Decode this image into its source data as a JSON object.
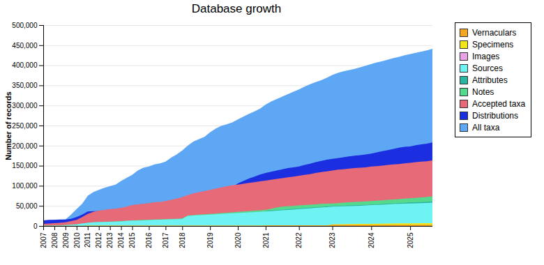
{
  "chart_data": {
    "type": "area",
    "title": "Database growth",
    "y_label": "Number of records",
    "stacked": false,
    "grid": true,
    "legend": "right",
    "ylim": [
      0,
      500000
    ],
    "yticks": [
      0,
      {
        "value": 50000,
        "label": "50,000"
      },
      {
        "value": 100000,
        "label": "100,000"
      },
      {
        "value": 150000,
        "label": "150,000"
      },
      {
        "value": 200000,
        "label": "200,000"
      },
      {
        "value": 250000,
        "label": "250,000"
      },
      {
        "value": 300000,
        "label": "300,000"
      },
      {
        "value": 350000,
        "label": "350,000"
      },
      {
        "value": 400000,
        "label": "400,000"
      },
      {
        "value": 450000,
        "label": "450,000"
      },
      {
        "value": 500000,
        "label": "500,000"
      }
    ],
    "categories": [
      "2007",
      null,
      "2008",
      null,
      "2009",
      null,
      "2010",
      null,
      "2011",
      null,
      "2012",
      null,
      "2013",
      null,
      "2014",
      null,
      "2015",
      null,
      null,
      "2016",
      null,
      null,
      "2017",
      null,
      null,
      "2018",
      null,
      null,
      null,
      null,
      "2019",
      null,
      null,
      null,
      null,
      "2020",
      null,
      null,
      null,
      null,
      "2021",
      null,
      null,
      null,
      null,
      null,
      "2022",
      null,
      null,
      null,
      null,
      null,
      "2023",
      null,
      null,
      null,
      null,
      null,
      null,
      "2024",
      null,
      null,
      null,
      null,
      null,
      null,
      "2025",
      null,
      null,
      null,
      null
    ],
    "series": [
      {
        "name": "Vernaculars",
        "color": "#f5a623",
        "values": [
          500,
          500,
          500,
          500,
          500,
          500,
          500,
          500,
          500,
          500,
          500,
          500,
          500,
          500,
          500,
          500,
          500,
          500,
          500,
          500,
          500,
          500,
          500,
          500,
          500,
          500,
          500,
          500,
          500,
          500,
          500,
          500,
          500,
          500,
          500,
          500,
          500,
          500,
          500,
          500,
          1500,
          1500,
          1500,
          1500,
          1500,
          1500,
          1500,
          1500,
          1500,
          1500,
          1500,
          1500,
          3000,
          3000,
          3000,
          3000,
          3000,
          3000,
          3000,
          3000,
          3000,
          3000,
          3000,
          3000,
          3000,
          3000,
          3000,
          3000,
          3000,
          3000,
          3000
        ]
      },
      {
        "name": "Specimens",
        "color": "#f2e51c",
        "values": [
          0,
          0,
          0,
          0,
          0,
          0,
          0,
          0,
          1000,
          1000,
          1000,
          1000,
          1000,
          1000,
          1000,
          1000,
          1000,
          1000,
          1000,
          1000,
          1000,
          1000,
          1000,
          1000,
          1000,
          1000,
          1000,
          1000,
          1000,
          1000,
          1000,
          1000,
          1000,
          1000,
          1000,
          1000,
          1000,
          1000,
          1000,
          1000,
          1000,
          1000,
          1000,
          1000,
          1000,
          1000,
          1000,
          1000,
          1000,
          1000,
          1000,
          1000,
          4000,
          4200,
          4400,
          4600,
          4800,
          5000,
          5200,
          5400,
          5600,
          5800,
          6000,
          6200,
          6400,
          6500,
          6600,
          6700,
          6800,
          6900,
          7000
        ]
      },
      {
        "name": "Images",
        "color": "#e8a3e6",
        "values": [
          0,
          0,
          0,
          0,
          0,
          0,
          0,
          0,
          0,
          0,
          500,
          500,
          500,
          500,
          500,
          500,
          500,
          500,
          500,
          500,
          500,
          500,
          500,
          500,
          500,
          500,
          500,
          500,
          500,
          500,
          500,
          500,
          500,
          500,
          500,
          500,
          500,
          500,
          500,
          500,
          1000,
          1000,
          1000,
          1000,
          1000,
          1000,
          1000,
          1000,
          1000,
          1000,
          1000,
          1000,
          1000,
          1000,
          1000,
          1000,
          1000,
          1000,
          1000,
          1000,
          1000,
          1000,
          1000,
          1000,
          1000,
          1000,
          1000,
          1000,
          1000,
          1000,
          1000
        ]
      },
      {
        "name": "Sources",
        "color": "#6ff2f2",
        "values": [
          1000,
          1000,
          1500,
          1500,
          2000,
          3000,
          4000,
          6000,
          8000,
          9000,
          9500,
          10000,
          10500,
          11000,
          11500,
          12500,
          13000,
          13500,
          14000,
          14500,
          15000,
          15500,
          16000,
          16500,
          17000,
          17500,
          25000,
          26000,
          27000,
          27500,
          28000,
          29000,
          30000,
          31000,
          31500,
          32000,
          33000,
          34000,
          34500,
          35000,
          36000,
          37000,
          38000,
          39000,
          40000,
          41000,
          42000,
          43000,
          44000,
          45000,
          46000,
          47000,
          48000,
          48500,
          49000,
          49500,
          50000,
          50500,
          51000,
          52000,
          52500,
          53000,
          54000,
          54500,
          55000,
          55500,
          56000,
          56500,
          57000,
          57500,
          58000
        ]
      },
      {
        "name": "Attributes",
        "color": "#2bb5a0",
        "values": [
          500,
          500,
          500,
          500,
          500,
          500,
          500,
          500,
          500,
          500,
          500,
          500,
          500,
          500,
          500,
          500,
          500,
          500,
          500,
          500,
          500,
          500,
          500,
          500,
          500,
          500,
          500,
          500,
          500,
          500,
          500,
          500,
          500,
          500,
          500,
          500,
          500,
          500,
          500,
          500,
          37000,
          38500,
          39500,
          40500,
          41500,
          42500,
          43500,
          44500,
          45500,
          46500,
          47500,
          48500,
          49500,
          50000,
          50500,
          51000,
          51500,
          52000,
          52500,
          53500,
          54000,
          54500,
          55500,
          56000,
          57000,
          57500,
          58500,
          59000,
          59500,
          60000,
          61000
        ]
      },
      {
        "name": "Notes",
        "color": "#55d98c",
        "values": [
          1000,
          1000,
          1500,
          1500,
          2000,
          3000,
          4000,
          6000,
          8000,
          9000,
          10000,
          10500,
          11000,
          11500,
          12000,
          13000,
          14000,
          14500,
          15000,
          15500,
          16000,
          16500,
          17000,
          17500,
          18000,
          18500,
          26000,
          27000,
          28000,
          29000,
          30000,
          31000,
          32000,
          33000,
          34000,
          35000,
          36000,
          37000,
          38000,
          39000,
          40000,
          43000,
          46000,
          48000,
          49000,
          50000,
          51000,
          52000,
          53000,
          54000,
          55000,
          55500,
          56000,
          57000,
          58000,
          59000,
          60000,
          60500,
          61000,
          62000,
          63000,
          64000,
          65000,
          66000,
          67000,
          68000,
          69000,
          70000,
          71000,
          72000,
          74000
        ]
      },
      {
        "name": "Accepted taxa",
        "color": "#e66a78",
        "values": [
          5000,
          6000,
          7000,
          8000,
          9000,
          12000,
          15000,
          22000,
          30000,
          35000,
          38000,
          40000,
          42000,
          43000,
          45000,
          48000,
          52000,
          54000,
          55000,
          57000,
          59000,
          60000,
          62000,
          65000,
          68000,
          72000,
          77000,
          81000,
          84000,
          87000,
          90000,
          93000,
          96000,
          99000,
          101000,
          103000,
          105000,
          107000,
          109000,
          111000,
          113000,
          115000,
          117000,
          119000,
          121000,
          123000,
          125000,
          127000,
          129000,
          132000,
          134000,
          136000,
          138000,
          140000,
          141000,
          143000,
          144000,
          145000,
          146000,
          148000,
          149000,
          150000,
          152000,
          153000,
          154000,
          156000,
          157000,
          159000,
          160000,
          161000,
          163000
        ]
      },
      {
        "name": "Distributions",
        "color": "#1c2fe0",
        "values": [
          14000,
          15000,
          15000,
          16000,
          16000,
          18000,
          22000,
          28000,
          36000,
          37000,
          37000,
          38000,
          38000,
          39000,
          40000,
          42000,
          45000,
          48000,
          50000,
          52000,
          54000,
          56000,
          58000,
          61000,
          64000,
          67000,
          71000,
          75000,
          78000,
          81000,
          84000,
          87000,
          90000,
          93000,
          96000,
          106000,
          112000,
          118000,
          123000,
          128000,
          132000,
          135000,
          138000,
          141000,
          144000,
          146000,
          148000,
          152000,
          155000,
          159000,
          162000,
          165000,
          167000,
          169000,
          171000,
          173000,
          175000,
          176000,
          178000,
          180000,
          183000,
          186000,
          189000,
          192000,
          195000,
          197000,
          198000,
          201000,
          203000,
          205000,
          208000
        ]
      },
      {
        "name": "All taxa",
        "color": "#5ea7f5",
        "values": [
          12000,
          14000,
          15000,
          15000,
          16000,
          28000,
          42000,
          55000,
          75000,
          84000,
          90000,
          95000,
          99000,
          103000,
          112000,
          120000,
          127000,
          138000,
          145000,
          148000,
          153000,
          156000,
          160000,
          170000,
          178000,
          188000,
          200000,
          210000,
          216000,
          222000,
          233000,
          242000,
          249000,
          253000,
          258000,
          265000,
          272000,
          279000,
          285000,
          292000,
          302000,
          310000,
          316000,
          322000,
          328000,
          334000,
          340000,
          347000,
          353000,
          358000,
          363000,
          369000,
          376000,
          381000,
          385000,
          388000,
          391000,
          395000,
          399000,
          403000,
          407000,
          410000,
          414000,
          418000,
          421000,
          425000,
          428000,
          431000,
          434000,
          437000,
          441000
        ]
      }
    ]
  }
}
